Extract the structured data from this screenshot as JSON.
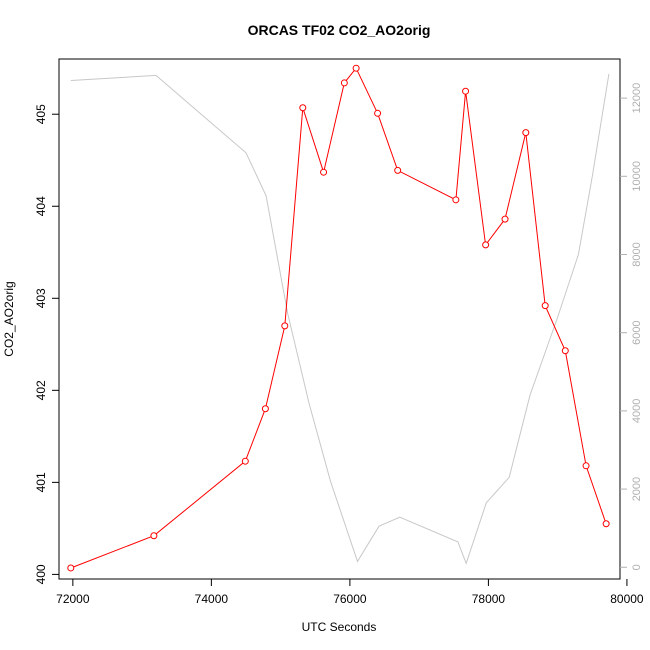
{
  "chart_data": {
    "type": "line",
    "title": "ORCAS TF02 CO2_AO2orig",
    "xlabel": "UTC Seconds",
    "ylabel": "CO2_AO2orig",
    "xlim": [
      71800,
      79900
    ],
    "ylim": [
      399.95,
      405.6
    ],
    "y2lim": [
      -300,
      13000
    ],
    "x_ticks": [
      72000,
      74000,
      76000,
      78000,
      80000
    ],
    "y_ticks": [
      400,
      401,
      402,
      403,
      404,
      405
    ],
    "y2_ticks": [
      0,
      2000,
      4000,
      6000,
      8000,
      10000,
      12000
    ],
    "grid": false,
    "legend": "none",
    "series": [
      {
        "axis": "left",
        "color": "#ff0000",
        "style": "line+points",
        "points": [
          [
            71970,
            400.07
          ],
          [
            73170,
            400.42
          ],
          [
            74490,
            401.23
          ],
          [
            74780,
            401.8
          ],
          [
            75060,
            402.7
          ],
          [
            75320,
            405.07
          ],
          [
            75620,
            404.37
          ],
          [
            75920,
            405.34
          ],
          [
            76090,
            405.5
          ],
          [
            76400,
            405.01
          ],
          [
            76690,
            404.39
          ],
          [
            77530,
            404.07
          ],
          [
            77670,
            405.25
          ],
          [
            77960,
            403.58
          ],
          [
            78240,
            403.86
          ],
          [
            78540,
            404.8
          ],
          [
            78820,
            402.92
          ],
          [
            79110,
            402.43
          ],
          [
            79410,
            401.18
          ],
          [
            79700,
            400.55
          ]
        ]
      },
      {
        "axis": "right",
        "color": "#c8c8c8",
        "style": "line",
        "points": [
          [
            71970,
            12450
          ],
          [
            73200,
            12580
          ],
          [
            74500,
            10600
          ],
          [
            74790,
            9500
          ],
          [
            75100,
            6500
          ],
          [
            75410,
            4200
          ],
          [
            75720,
            2200
          ],
          [
            76110,
            150
          ],
          [
            76420,
            1050
          ],
          [
            76720,
            1280
          ],
          [
            77560,
            650
          ],
          [
            77680,
            100
          ],
          [
            77970,
            1650
          ],
          [
            78300,
            2300
          ],
          [
            78600,
            4400
          ],
          [
            79000,
            6400
          ],
          [
            79300,
            8000
          ],
          [
            79500,
            10000
          ],
          [
            79740,
            12620
          ]
        ]
      }
    ]
  }
}
